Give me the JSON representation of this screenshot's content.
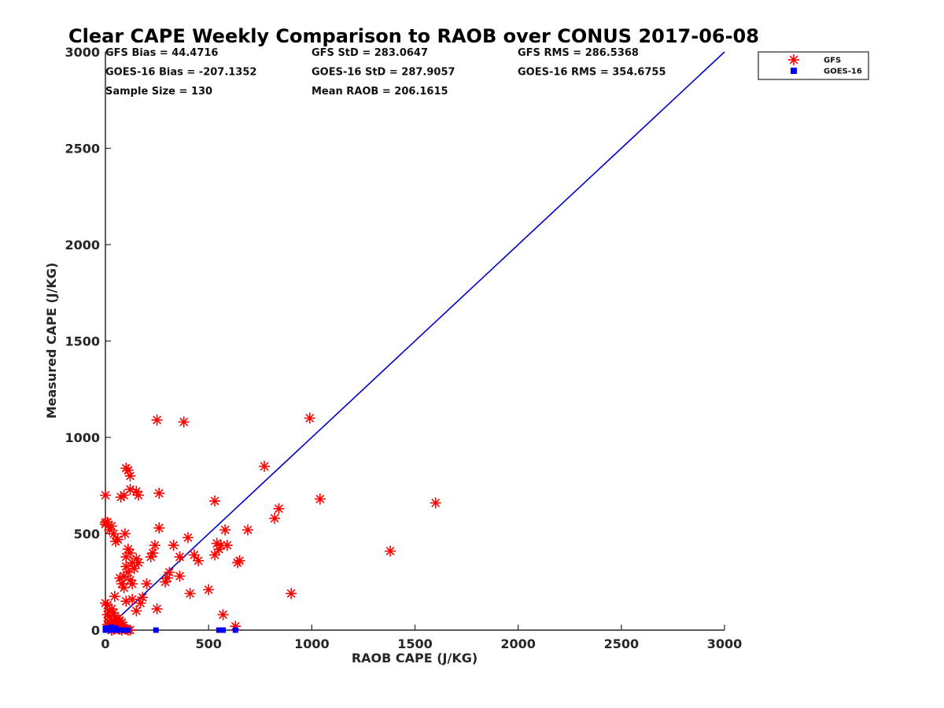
{
  "chart_data": {
    "type": "scatter",
    "title": "Clear CAPE Weekly Comparison to RAOB over CONUS 2017-06-08",
    "xlabel": "RAOB CAPE (J/KG)",
    "ylabel": "Measured CAPE (J/KG)",
    "xlim": [
      0,
      3000
    ],
    "ylim": [
      0,
      3000
    ],
    "xticks": [
      "0",
      "500",
      "1000",
      "1500",
      "2000",
      "2500",
      "3000"
    ],
    "yticks": [
      "0",
      "500",
      "1000",
      "1500",
      "2000",
      "2500",
      "3000"
    ],
    "grid": false,
    "legend_position": "top-right",
    "colors": {
      "gfs": "#ff0000",
      "goes16": "#0000ff",
      "one_to_one_line": "#0000cc"
    },
    "stats": [
      [
        "GFS Bias = 44.4716",
        "GFS StD = 283.0647",
        "GFS RMS = 286.5368"
      ],
      [
        "GOES-16 Bias = -207.1352",
        "GOES-16 StD = 287.9057",
        "GOES-16 RMS = 354.6755"
      ],
      [
        "Sample Size = 130",
        "Mean RAOB = 206.1615",
        ""
      ]
    ],
    "reference_line": {
      "x": [
        0,
        3000
      ],
      "y": [
        0,
        3000
      ]
    },
    "series": [
      {
        "name": "GFS",
        "marker": "asterisk",
        "color": "#ff0000",
        "points": [
          [
            0,
            700
          ],
          [
            0,
            560
          ],
          [
            0,
            550
          ],
          [
            10,
            560
          ],
          [
            20,
            520
          ],
          [
            30,
            540
          ],
          [
            40,
            500
          ],
          [
            50,
            460
          ],
          [
            60,
            470
          ],
          [
            0,
            140
          ],
          [
            10,
            130
          ],
          [
            20,
            100
          ],
          [
            30,
            110
          ],
          [
            40,
            90
          ],
          [
            50,
            60
          ],
          [
            60,
            40
          ],
          [
            70,
            30
          ],
          [
            80,
            20
          ],
          [
            90,
            10
          ],
          [
            100,
            5
          ],
          [
            10,
            80
          ],
          [
            20,
            70
          ],
          [
            30,
            50
          ],
          [
            40,
            30
          ],
          [
            50,
            20
          ],
          [
            60,
            10
          ],
          [
            70,
            5
          ],
          [
            80,
            0
          ],
          [
            20,
            10
          ],
          [
            30,
            0
          ],
          [
            40,
            5
          ],
          [
            10,
            30
          ],
          [
            20,
            40
          ],
          [
            30,
            20
          ],
          [
            50,
            40
          ],
          [
            60,
            60
          ],
          [
            70,
            50
          ],
          [
            80,
            40
          ],
          [
            45,
            175
          ],
          [
            70,
            270
          ],
          [
            80,
            240
          ],
          [
            90,
            280
          ],
          [
            75,
            690
          ],
          [
            90,
            700
          ],
          [
            100,
            840
          ],
          [
            110,
            830
          ],
          [
            120,
            800
          ],
          [
            120,
            730
          ],
          [
            150,
            720
          ],
          [
            160,
            700
          ],
          [
            95,
            500
          ],
          [
            100,
            380
          ],
          [
            110,
            420
          ],
          [
            120,
            400
          ],
          [
            130,
            350
          ],
          [
            140,
            320
          ],
          [
            100,
            330
          ],
          [
            110,
            300
          ],
          [
            120,
            260
          ],
          [
            90,
            220
          ],
          [
            130,
            240
          ],
          [
            150,
            370
          ],
          [
            160,
            350
          ],
          [
            130,
            160
          ],
          [
            150,
            100
          ],
          [
            170,
            140
          ],
          [
            180,
            170
          ],
          [
            200,
            240
          ],
          [
            100,
            150
          ],
          [
            110,
            0
          ],
          [
            120,
            0
          ],
          [
            220,
            380
          ],
          [
            230,
            400
          ],
          [
            240,
            440
          ],
          [
            250,
            110
          ],
          [
            250,
            1090
          ],
          [
            260,
            710
          ],
          [
            260,
            530
          ],
          [
            290,
            250
          ],
          [
            300,
            270
          ],
          [
            310,
            300
          ],
          [
            330,
            440
          ],
          [
            360,
            280
          ],
          [
            360,
            380
          ],
          [
            380,
            1080
          ],
          [
            400,
            480
          ],
          [
            410,
            190
          ],
          [
            430,
            390
          ],
          [
            450,
            360
          ],
          [
            500,
            210
          ],
          [
            530,
            670
          ],
          [
            530,
            390
          ],
          [
            540,
            450
          ],
          [
            550,
            420
          ],
          [
            560,
            440
          ],
          [
            570,
            80
          ],
          [
            580,
            520
          ],
          [
            590,
            440
          ],
          [
            630,
            20
          ],
          [
            640,
            350
          ],
          [
            650,
            360
          ],
          [
            690,
            520
          ],
          [
            770,
            850
          ],
          [
            820,
            580
          ],
          [
            840,
            630
          ],
          [
            900,
            190
          ],
          [
            990,
            1100
          ],
          [
            1040,
            680
          ],
          [
            1380,
            410
          ],
          [
            1600,
            660
          ]
        ]
      },
      {
        "name": "GOES-16",
        "marker": "square",
        "color": "#0000ff",
        "points": [
          [
            0,
            0
          ],
          [
            10,
            0
          ],
          [
            20,
            0
          ],
          [
            30,
            0
          ],
          [
            40,
            0
          ],
          [
            50,
            0
          ],
          [
            60,
            0
          ],
          [
            70,
            0
          ],
          [
            80,
            0
          ],
          [
            90,
            0
          ],
          [
            100,
            0
          ],
          [
            110,
            0
          ],
          [
            0,
            10
          ],
          [
            10,
            10
          ],
          [
            20,
            5
          ],
          [
            30,
            15
          ],
          [
            40,
            5
          ],
          [
            50,
            10
          ],
          [
            245,
            0
          ],
          [
            550,
            0
          ],
          [
            570,
            0
          ],
          [
            630,
            0
          ]
        ]
      }
    ]
  }
}
